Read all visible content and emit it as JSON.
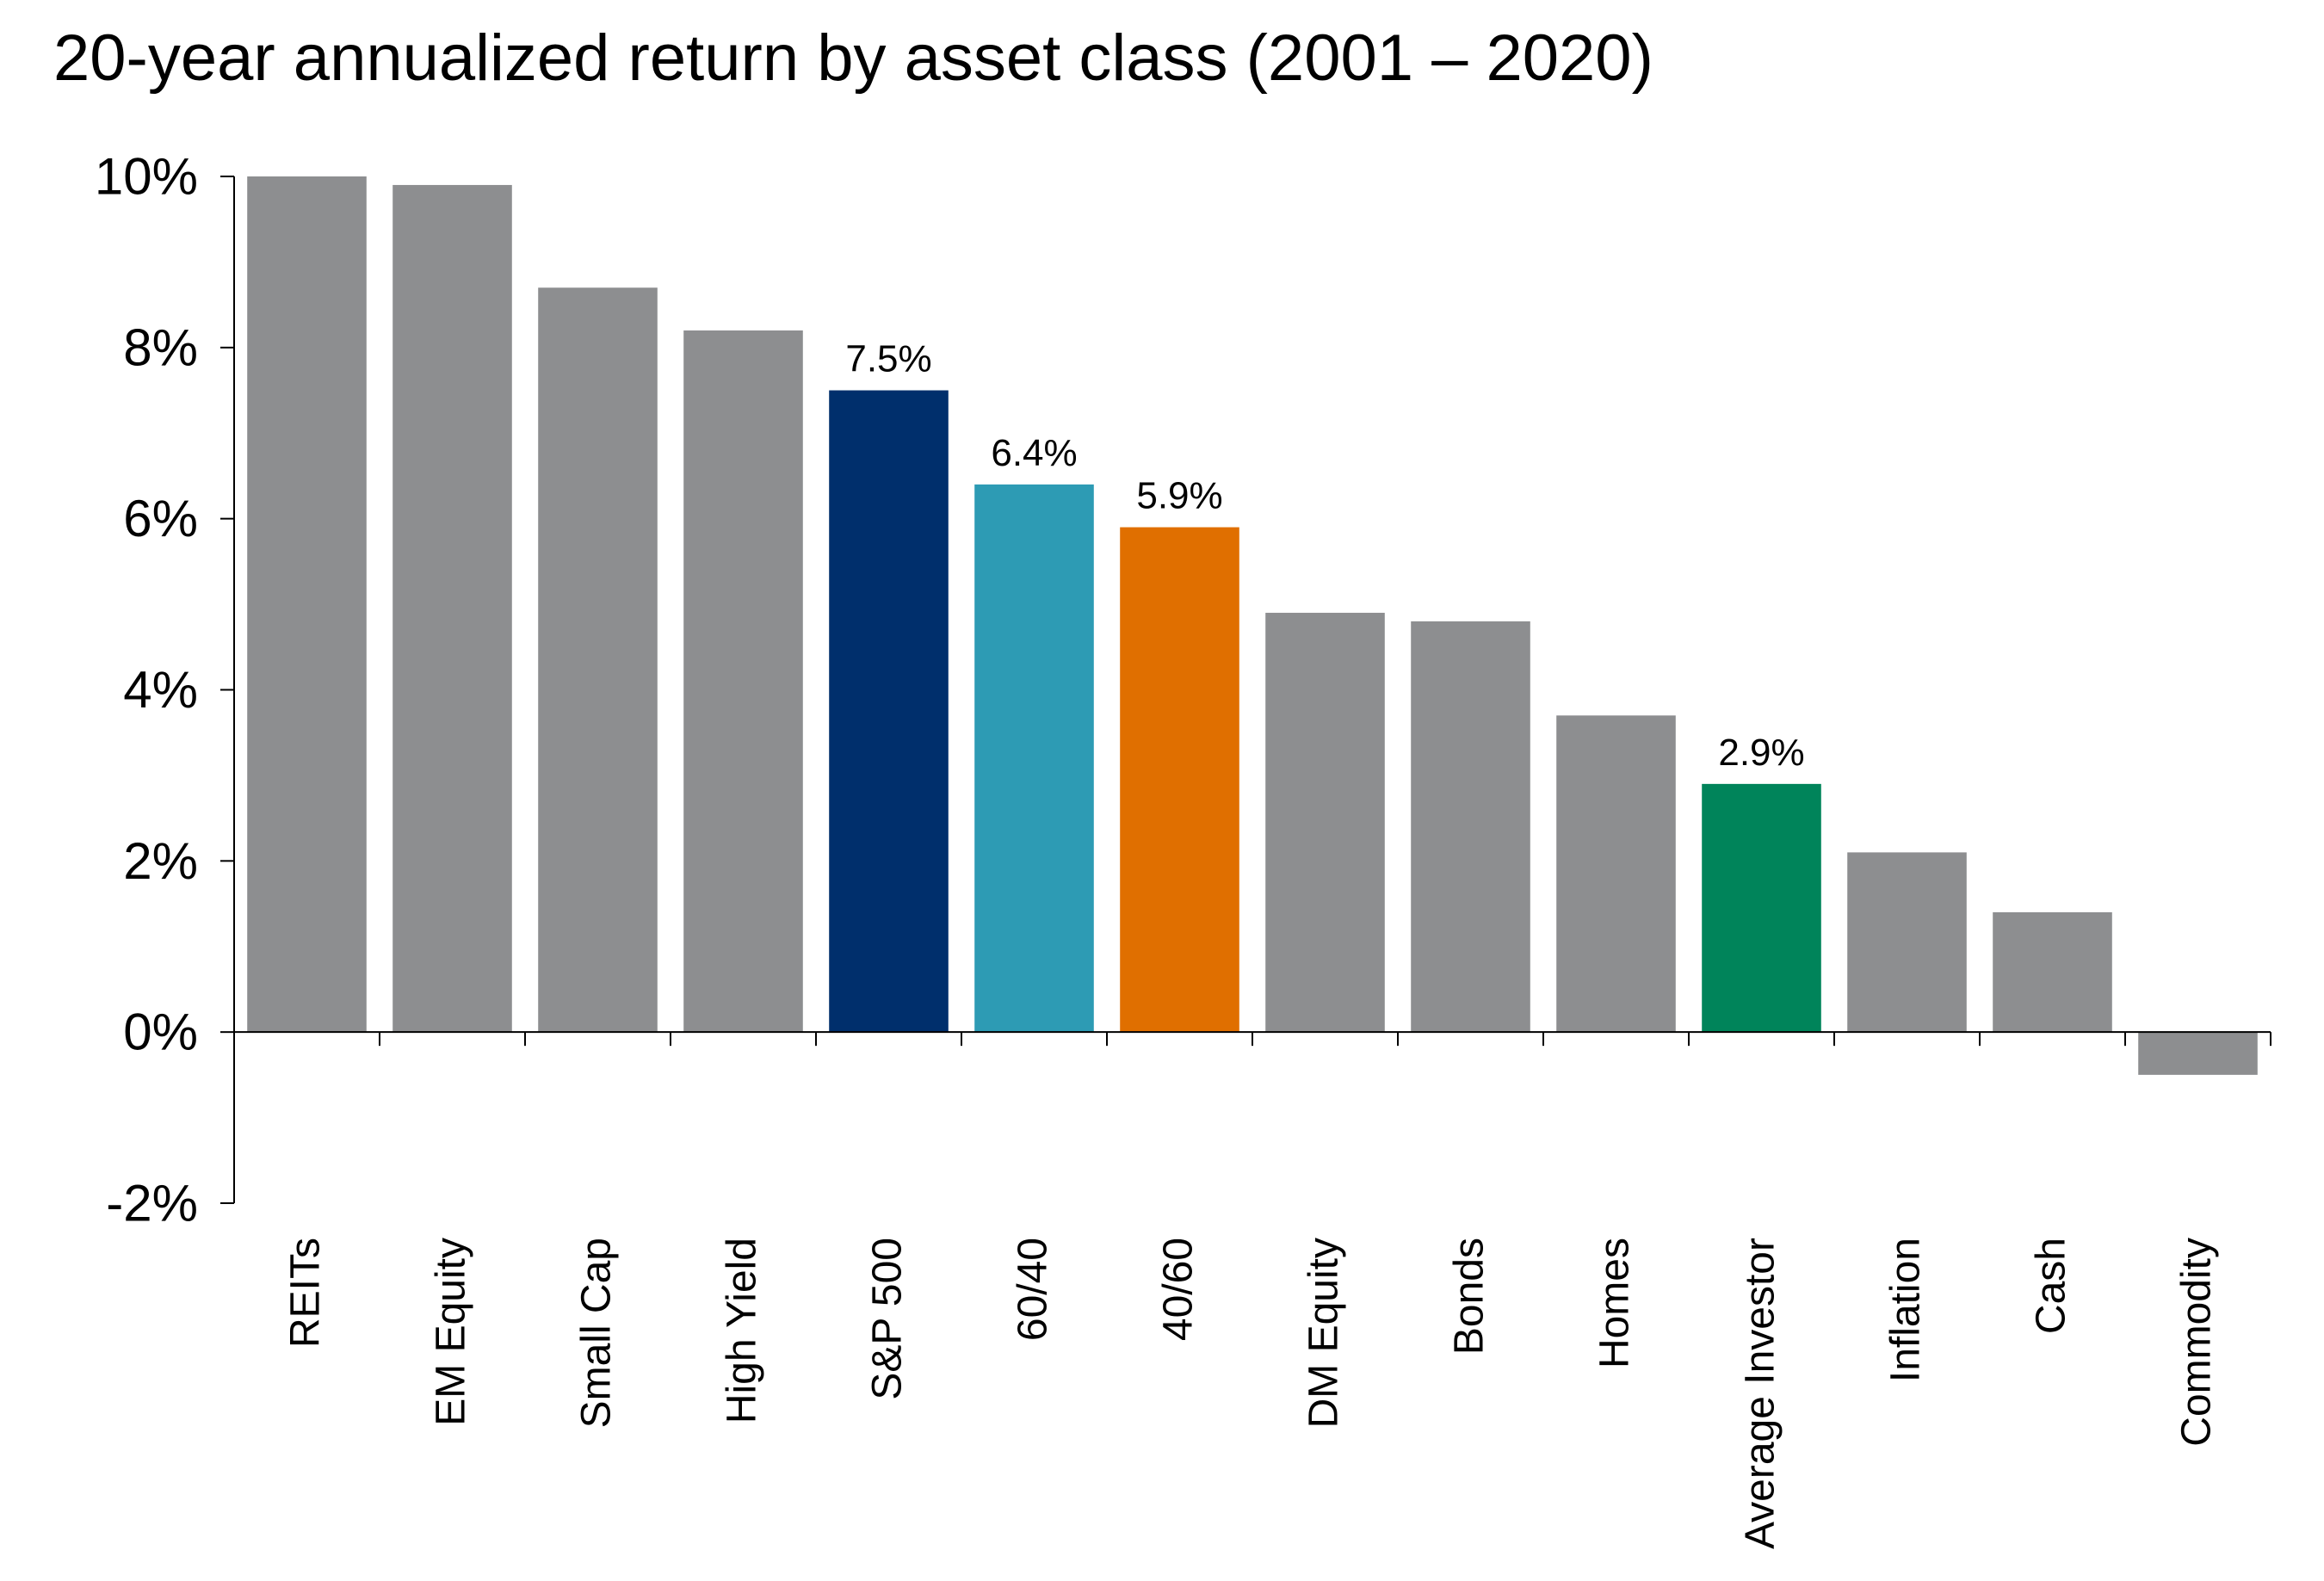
{
  "chart_data": {
    "type": "bar",
    "title": "20-year annualized return by asset class (2001 – 2020)",
    "xlabel": "",
    "ylabel": "",
    "ylim": [
      -2,
      10
    ],
    "yticks": [
      -2,
      0,
      2,
      4,
      6,
      8,
      10
    ],
    "ytick_labels": [
      "-2%",
      "0%",
      "2%",
      "4%",
      "6%",
      "8%",
      "10%"
    ],
    "grid": false,
    "legend": "none",
    "categories": [
      "REITs",
      "EM Equity",
      "Small Cap",
      "High Yield",
      "S&P 500",
      "60/40",
      "40/60",
      "DM Equity",
      "Bonds",
      "Homes",
      "Average Investor",
      "Inflation",
      "Cash",
      "Commodity"
    ],
    "values": [
      10.0,
      9.9,
      8.7,
      8.2,
      7.5,
      6.4,
      5.9,
      4.9,
      4.8,
      3.7,
      2.9,
      2.1,
      1.4,
      -0.5
    ],
    "colors": [
      "#8d8e90",
      "#8d8e90",
      "#8d8e90",
      "#8d8e90",
      "#002f6c",
      "#2d9bb4",
      "#e06f00",
      "#8d8e90",
      "#8d8e90",
      "#8d8e90",
      "#00845a",
      "#8d8e90",
      "#8d8e90",
      "#8d8e90"
    ],
    "data_labels": [
      "",
      "",
      "",
      "",
      "7.5%",
      "6.4%",
      "5.9%",
      "",
      "",
      "",
      "2.9%",
      "",
      "",
      ""
    ]
  }
}
